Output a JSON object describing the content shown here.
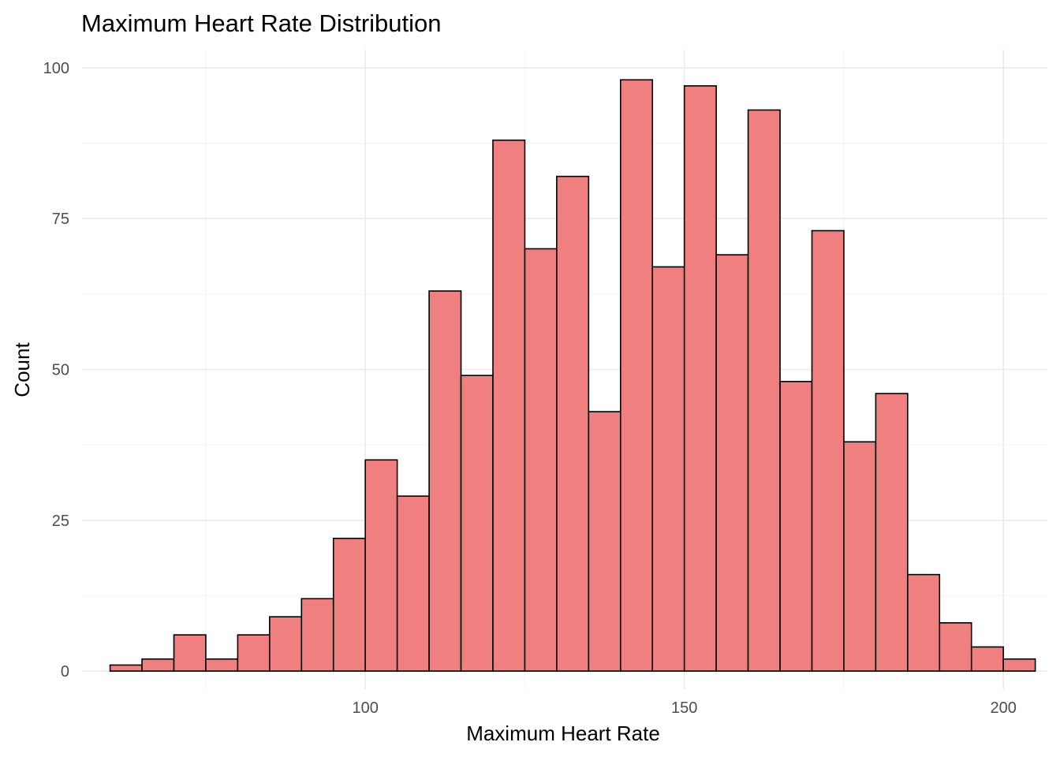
{
  "chart_data": {
    "type": "bar",
    "subtype": "histogram",
    "title": "Maximum Heart Rate Distribution",
    "xlabel": "Maximum Heart Rate",
    "ylabel": "Count",
    "xlim": [
      55.6,
      206.9
    ],
    "ylim": [
      -3,
      103
    ],
    "x_ticks": [
      100,
      150,
      200
    ],
    "x_tick_labels": [
      "100",
      "150",
      "200"
    ],
    "x_minor_ticks": [
      75,
      125,
      175
    ],
    "y_ticks": [
      0,
      25,
      50,
      75,
      100
    ],
    "y_tick_labels": [
      "0",
      "25",
      "50",
      "75",
      "100"
    ],
    "y_minor_ticks": [
      12.5,
      37.5,
      62.5,
      87.5
    ],
    "grid": true,
    "legend": "none",
    "bin_start": 60,
    "bin_width": 5,
    "values": [
      1,
      2,
      6,
      2,
      6,
      9,
      12,
      22,
      35,
      29,
      63,
      49,
      88,
      70,
      82,
      43,
      98,
      67,
      97,
      69,
      93,
      48,
      73,
      38,
      46,
      16,
      8,
      4,
      2
    ],
    "colors": {
      "fill": "#f08080",
      "outline": "#000000"
    }
  }
}
